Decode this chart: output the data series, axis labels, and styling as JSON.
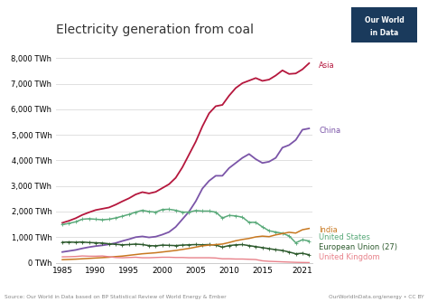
{
  "title": "Electricity generation from coal",
  "source_text": "Source: Our World in Data based on BP Statistical Review of World Energy & Ember",
  "source_url": "OurWorldInData.org/energy • CC BY",
  "background_color": "#ffffff",
  "plot_bg_color": "#ffffff",
  "years": [
    1985,
    1986,
    1987,
    1988,
    1989,
    1990,
    1991,
    1992,
    1993,
    1994,
    1995,
    1996,
    1997,
    1998,
    1999,
    2000,
    2001,
    2002,
    2003,
    2004,
    2005,
    2006,
    2007,
    2008,
    2009,
    2010,
    2011,
    2012,
    2013,
    2014,
    2015,
    2016,
    2017,
    2018,
    2019,
    2020,
    2021,
    2022
  ],
  "series": [
    {
      "name": "Asia",
      "color": "#b5173d",
      "linewidth": 1.3,
      "marker": null,
      "data": [
        1560,
        1640,
        1740,
        1870,
        1970,
        2060,
        2110,
        2160,
        2270,
        2400,
        2520,
        2670,
        2760,
        2710,
        2770,
        2920,
        3070,
        3320,
        3730,
        4230,
        4730,
        5330,
        5840,
        6120,
        6170,
        6530,
        6830,
        7020,
        7120,
        7220,
        7110,
        7160,
        7320,
        7520,
        7380,
        7400,
        7560,
        7800
      ]
    },
    {
      "name": "China",
      "color": "#7b55a8",
      "linewidth": 1.3,
      "marker": null,
      "data": [
        420,
        460,
        500,
        560,
        610,
        650,
        680,
        720,
        770,
        850,
        920,
        1000,
        1030,
        990,
        1020,
        1100,
        1200,
        1400,
        1700,
        2000,
        2400,
        2900,
        3200,
        3400,
        3400,
        3700,
        3900,
        4100,
        4250,
        4050,
        3900,
        3950,
        4100,
        4500,
        4600,
        4800,
        5200,
        5250
      ]
    },
    {
      "name": "United States",
      "color": "#5aaa7a",
      "linewidth": 1.1,
      "marker": "+",
      "data": [
        1490,
        1540,
        1600,
        1700,
        1720,
        1700,
        1680,
        1700,
        1750,
        1820,
        1890,
        1980,
        2050,
        2000,
        1980,
        2080,
        2090,
        2050,
        1980,
        1980,
        2040,
        2020,
        2020,
        1980,
        1750,
        1850,
        1830,
        1780,
        1580,
        1580,
        1400,
        1250,
        1200,
        1150,
        1050,
        780,
        900,
        850
      ]
    },
    {
      "name": "European Union (27)",
      "color": "#2d5a2d",
      "linewidth": 1.1,
      "marker": "+",
      "data": [
        800,
        810,
        800,
        810,
        790,
        780,
        770,
        740,
        720,
        700,
        710,
        730,
        710,
        670,
        660,
        690,
        680,
        670,
        690,
        700,
        710,
        700,
        710,
        690,
        610,
        670,
        700,
        710,
        670,
        630,
        590,
        550,
        510,
        480,
        420,
        350,
        370,
        310
      ]
    },
    {
      "name": "India",
      "color": "#c87820",
      "linewidth": 1.1,
      "marker": null,
      "data": [
        120,
        130,
        140,
        155,
        170,
        185,
        200,
        215,
        240,
        260,
        290,
        320,
        350,
        370,
        390,
        420,
        450,
        480,
        520,
        560,
        610,
        660,
        690,
        710,
        730,
        790,
        860,
        910,
        950,
        1010,
        1040,
        1020,
        1090,
        1140,
        1190,
        1160,
        1290,
        1340
      ]
    },
    {
      "name": "United Kingdom",
      "color": "#e8818a",
      "linewidth": 1.0,
      "marker": null,
      "data": [
        230,
        235,
        245,
        265,
        255,
        255,
        265,
        235,
        205,
        195,
        205,
        215,
        195,
        195,
        205,
        215,
        215,
        205,
        205,
        195,
        195,
        195,
        195,
        185,
        155,
        155,
        145,
        145,
        135,
        125,
        75,
        55,
        45,
        35,
        25,
        15,
        10,
        5
      ]
    }
  ],
  "ylim": [
    0,
    8500
  ],
  "yticks": [
    0,
    1000,
    2000,
    3000,
    4000,
    5000,
    6000,
    7000,
    8000
  ],
  "ytick_labels": [
    "0 TWh",
    "1,000 TWh",
    "2,000 TWh",
    "3,000 TWh",
    "4,000 TWh",
    "5,000 TWh",
    "6,000 TWh",
    "7,000 TWh",
    "8,000 TWh"
  ],
  "xticks": [
    1985,
    1990,
    1995,
    2000,
    2005,
    2010,
    2015,
    2021
  ],
  "xlim": [
    1984,
    2022.5
  ],
  "series_labels": [
    {
      "name": "Asia",
      "y": 7700,
      "color": "#b5173d"
    },
    {
      "name": "China",
      "y": 5150,
      "color": "#7b55a8"
    },
    {
      "name": "India",
      "y": 1270,
      "color": "#c87820"
    },
    {
      "name": "United States",
      "y": 980,
      "color": "#5aaa7a"
    },
    {
      "name": "European Union (27)",
      "y": 620,
      "color": "#2d5a2d"
    },
    {
      "name": "United Kingdom",
      "y": 230,
      "color": "#e8818a"
    }
  ],
  "logo_text1": "Our World",
  "logo_text2": "in Data",
  "logo_bg": "#1a3a5c"
}
